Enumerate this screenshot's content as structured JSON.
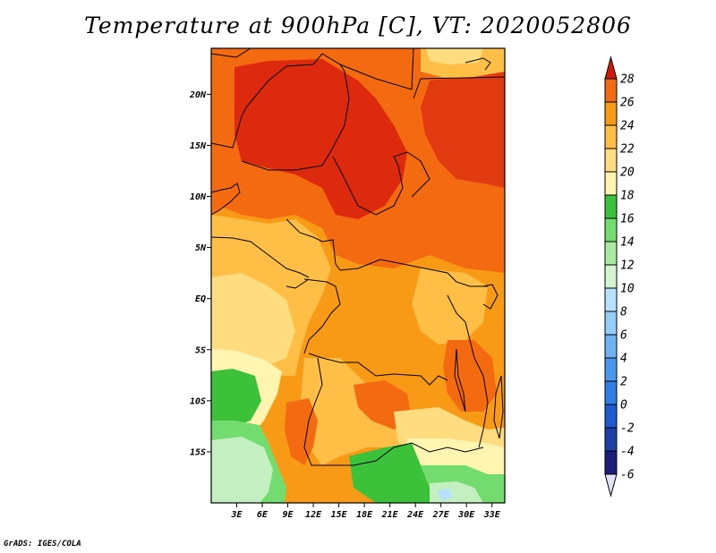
{
  "title": "Temperature at 900hPa [C], VT: 2020052806",
  "credit": "GrADS: IGES/COLA",
  "map": {
    "lon_range": [
      0,
      34.5
    ],
    "lat_range": [
      -20,
      24.5
    ],
    "lon_ticks": [
      {
        "value": 3,
        "label": "3E"
      },
      {
        "value": 6,
        "label": "6E"
      },
      {
        "value": 9,
        "label": "9E"
      },
      {
        "value": 12,
        "label": "12E"
      },
      {
        "value": 15,
        "label": "15E"
      },
      {
        "value": 18,
        "label": "18E"
      },
      {
        "value": 21,
        "label": "21E"
      },
      {
        "value": 24,
        "label": "24E"
      },
      {
        "value": 27,
        "label": "27E"
      },
      {
        "value": 30,
        "label": "30E"
      },
      {
        "value": 33,
        "label": "33E"
      }
    ],
    "lat_ticks": [
      {
        "value": 20,
        "label": "20N"
      },
      {
        "value": 15,
        "label": "15N"
      },
      {
        "value": 10,
        "label": "10N"
      },
      {
        "value": 5,
        "label": "5N"
      },
      {
        "value": 0,
        "label": "EQ"
      },
      {
        "value": -5,
        "label": "5S"
      },
      {
        "value": -10,
        "label": "10S"
      },
      {
        "value": -15,
        "label": "15S"
      }
    ]
  },
  "colorbar": {
    "levels": [
      {
        "label": "-6",
        "color": "#1c1c7c"
      },
      {
        "label": "-4",
        "color": "#1c3fa8"
      },
      {
        "label": "-2",
        "color": "#1e5bd2"
      },
      {
        "label": "0",
        "color": "#2f7de6"
      },
      {
        "label": "2",
        "color": "#4a97ee"
      },
      {
        "label": "4",
        "color": "#6eb2f4"
      },
      {
        "label": "6",
        "color": "#94cdf8"
      },
      {
        "label": "8",
        "color": "#b8e2fb"
      },
      {
        "label": "10",
        "color": "#d4f3d0"
      },
      {
        "label": "12",
        "color": "#a8eaa0"
      },
      {
        "label": "14",
        "color": "#72dc6e"
      },
      {
        "label": "16",
        "color": "#3cc23a"
      },
      {
        "label": "18",
        "color": "#fff4b0"
      },
      {
        "label": "20",
        "color": "#ffdc80"
      },
      {
        "label": "22",
        "color": "#ffbe46"
      },
      {
        "label": "24",
        "color": "#f99a16"
      },
      {
        "label": "26",
        "color": "#f46a10"
      },
      {
        "label": "28",
        "color": "#e63a10"
      }
    ],
    "under_color": "#e2e2f8",
    "over_color": "#d0190e"
  }
}
